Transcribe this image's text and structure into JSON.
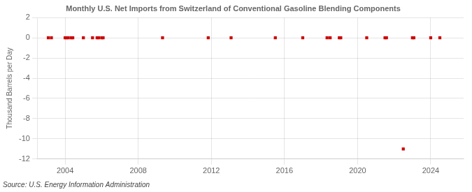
{
  "chart_data": {
    "type": "scatter",
    "title": "Monthly U.S. Net Imports from Switzerland of Conventional Gasoline Blending Components",
    "ylabel": "Thousand Barrels per Day",
    "annotations": [
      "Source: U.S. Energy Information Administration"
    ],
    "x": [
      2003.08,
      2003.25,
      2004.0,
      2004.08,
      2004.17,
      2004.33,
      2004.42,
      2005.0,
      2005.5,
      2005.75,
      2005.83,
      2006.0,
      2006.08,
      2009.33,
      2011.83,
      2013.08,
      2015.5,
      2017.0,
      2018.33,
      2018.5,
      2019.0,
      2019.08,
      2020.5,
      2021.5,
      2021.58,
      2022.5,
      2023.0,
      2023.08,
      2024.0,
      2024.5
    ],
    "values": [
      0,
      0,
      0,
      0,
      0,
      0,
      0,
      0,
      0,
      0,
      0,
      0,
      0,
      0,
      0,
      0,
      0,
      0,
      0,
      0,
      0,
      0,
      0,
      0,
      0,
      -11.0,
      0,
      0,
      0,
      0
    ],
    "color": "#cc0000",
    "marker": "square",
    "xlim": [
      2002.5,
      2025.8
    ],
    "xticks": [
      2004,
      2008,
      2012,
      2016,
      2020,
      2024
    ],
    "ylim": [
      -12,
      2
    ],
    "yticks": [
      2,
      0,
      -2,
      -4,
      -6,
      -8,
      -10,
      -12
    ],
    "grid": true
  }
}
